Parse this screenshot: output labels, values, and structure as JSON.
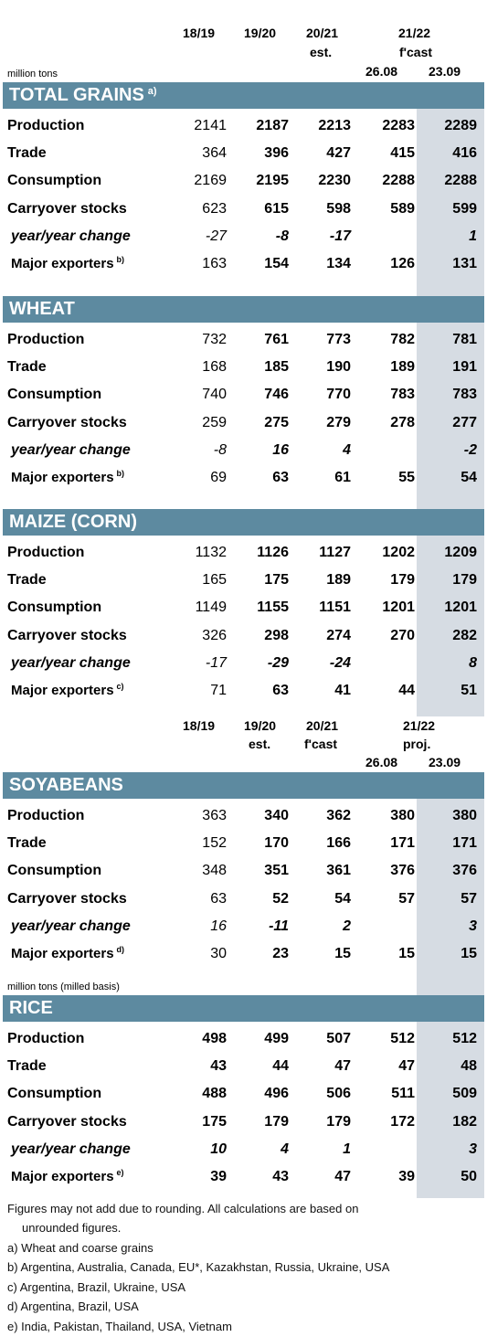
{
  "header_top": {
    "c1": "18/19",
    "c2": "19/20",
    "c3": "20/21",
    "c3b": "est.",
    "c4": "21/22",
    "c4b": "f'cast",
    "d1": "26.08",
    "d2": "23.09"
  },
  "header_mid": {
    "c1": "18/19",
    "c2": "19/20",
    "c2b": "est.",
    "c3": "20/21",
    "c3b": "f'cast",
    "c4": "21/22",
    "c4b": "proj.",
    "d1": "26.08",
    "d2": "23.09"
  },
  "units_top": "million tons",
  "units_rice": "million tons (milled basis)",
  "sections": [
    {
      "title": "TOTAL GRAINS",
      "note": "a)",
      "rows": [
        {
          "label": "Production",
          "values": [
            "2141",
            "2187",
            "2213",
            "2283",
            "2289"
          ]
        },
        {
          "label": "Trade",
          "values": [
            "364",
            "396",
            "427",
            "415",
            "416"
          ]
        },
        {
          "label": "Consumption",
          "values": [
            "2169",
            "2195",
            "2230",
            "2288",
            "2288"
          ]
        },
        {
          "label": "Carryover stocks",
          "values": [
            "623",
            "615",
            "598",
            "589",
            "599"
          ]
        },
        {
          "label": "year/year change",
          "values": [
            "-27",
            "-8",
            "-17",
            "",
            "1"
          ]
        },
        {
          "label": "Major exporters",
          "note": "b)",
          "values": [
            "163",
            "154",
            "134",
            "126",
            "131"
          ]
        }
      ]
    },
    {
      "title": "WHEAT",
      "note": "",
      "rows": [
        {
          "label": "Production",
          "values": [
            "732",
            "761",
            "773",
            "782",
            "781"
          ]
        },
        {
          "label": "Trade",
          "values": [
            "168",
            "185",
            "190",
            "189",
            "191"
          ]
        },
        {
          "label": "Consumption",
          "values": [
            "740",
            "746",
            "770",
            "783",
            "783"
          ]
        },
        {
          "label": "Carryover stocks",
          "values": [
            "259",
            "275",
            "279",
            "278",
            "277"
          ]
        },
        {
          "label": "year/year change",
          "values": [
            "-8",
            "16",
            "4",
            "",
            "-2"
          ]
        },
        {
          "label": "Major exporters",
          "note": "b)",
          "values": [
            "69",
            "63",
            "61",
            "55",
            "54"
          ]
        }
      ]
    },
    {
      "title": "MAIZE (CORN)",
      "note": "",
      "rows": [
        {
          "label": "Production",
          "values": [
            "1132",
            "1126",
            "1127",
            "1202",
            "1209"
          ]
        },
        {
          "label": "Trade",
          "values": [
            "165",
            "175",
            "189",
            "179",
            "179"
          ]
        },
        {
          "label": "Consumption",
          "values": [
            "1149",
            "1155",
            "1151",
            "1201",
            "1201"
          ]
        },
        {
          "label": "Carryover stocks",
          "values": [
            "326",
            "298",
            "274",
            "270",
            "282"
          ]
        },
        {
          "label": "year/year change",
          "values": [
            "-17",
            "-29",
            "-24",
            "",
            "8"
          ]
        },
        {
          "label": "Major exporters",
          "note": "c)",
          "values": [
            "71",
            "63",
            "41",
            "44",
            "51"
          ]
        }
      ]
    },
    {
      "title": "SOYABEANS",
      "note": "",
      "rows": [
        {
          "label": "Production",
          "values": [
            "363",
            "340",
            "362",
            "380",
            "380"
          ]
        },
        {
          "label": "Trade",
          "values": [
            "152",
            "170",
            "166",
            "171",
            "171"
          ]
        },
        {
          "label": "Consumption",
          "values": [
            "348",
            "351",
            "361",
            "376",
            "376"
          ]
        },
        {
          "label": "Carryover stocks",
          "values": [
            "63",
            "52",
            "54",
            "57",
            "57"
          ]
        },
        {
          "label": "year/year change",
          "values": [
            "16",
            "-11",
            "2",
            "",
            "3"
          ]
        },
        {
          "label": "Major exporters",
          "note": "d)",
          "values": [
            "30",
            "23",
            "15",
            "15",
            "15"
          ]
        }
      ]
    },
    {
      "title": "RICE",
      "note": "",
      "rows": [
        {
          "label": "Production",
          "values": [
            "498",
            "499",
            "507",
            "512",
            "512"
          ]
        },
        {
          "label": "Trade",
          "values": [
            "43",
            "44",
            "47",
            "47",
            "48"
          ]
        },
        {
          "label": "Consumption",
          "values": [
            "488",
            "496",
            "506",
            "511",
            "509"
          ]
        },
        {
          "label": "Carryover stocks",
          "values": [
            "175",
            "179",
            "179",
            "172",
            "182"
          ]
        },
        {
          "label": "year/year change",
          "values": [
            "10",
            "4",
            "1",
            "",
            "3"
          ]
        },
        {
          "label": "Major exporters",
          "note": "e)",
          "values": [
            "39",
            "43",
            "47",
            "39",
            "50"
          ]
        }
      ]
    }
  ],
  "footnotes": [
    "Figures may not add due to rounding. All calculations are based on",
    "unrounded figures.",
    "a) Wheat and coarse grains",
    "b) Argentina, Australia, Canada, EU*, Kazakhstan, Russia, Ukraine, USA",
    "c) Argentina, Brazil, Ukraine, USA",
    "d) Argentina, Brazil, USA",
    "e) India, Pakistan, Thailand, USA, Vietnam"
  ],
  "colors": {
    "section_bar": "#5d8aa0",
    "highlight_column": "#d6dce3"
  }
}
